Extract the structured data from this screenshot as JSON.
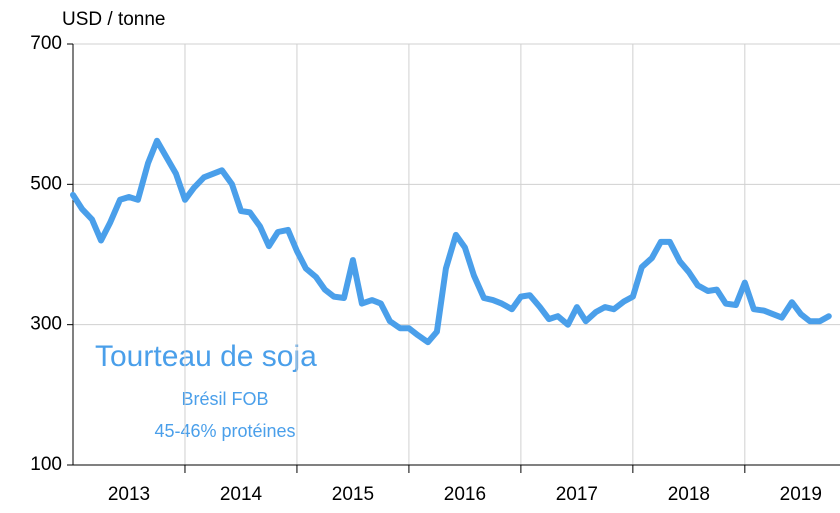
{
  "chart_data": {
    "type": "line",
    "y_label": "USD / tonne",
    "annotations": [
      "Tourteau de soja",
      "Brésil FOB",
      "45-46% protéines"
    ],
    "xlim": [
      2013,
      2019.85
    ],
    "xticks": [
      {
        "value": 2013.5,
        "label": "2013"
      },
      {
        "value": 2014.5,
        "label": "2014"
      },
      {
        "value": 2015.5,
        "label": "2015"
      },
      {
        "value": 2016.5,
        "label": "2016"
      },
      {
        "value": 2017.5,
        "label": "2017"
      },
      {
        "value": 2018.5,
        "label": "2018"
      },
      {
        "value": 2019.5,
        "label": "2019"
      }
    ],
    "x_grid": [
      2014,
      2015,
      2016,
      2017,
      2018,
      2019
    ],
    "ylim": [
      100,
      700
    ],
    "yticks": [
      100,
      300,
      500,
      700
    ],
    "grid": true,
    "x": [
      2013,
      2013.08,
      2013.17,
      2013.25,
      2013.33,
      2013.42,
      2013.5,
      2013.58,
      2013.67,
      2013.75,
      2013.83,
      2013.92,
      2014,
      2014.08,
      2014.17,
      2014.25,
      2014.33,
      2014.42,
      2014.5,
      2014.58,
      2014.67,
      2014.75,
      2014.83,
      2014.92,
      2015,
      2015.08,
      2015.17,
      2015.25,
      2015.33,
      2015.42,
      2015.5,
      2015.58,
      2015.67,
      2015.75,
      2015.83,
      2015.92,
      2016,
      2016.08,
      2016.17,
      2016.25,
      2016.33,
      2016.42,
      2016.5,
      2016.58,
      2016.67,
      2016.75,
      2016.83,
      2016.92,
      2017,
      2017.08,
      2017.17,
      2017.25,
      2017.33,
      2017.42,
      2017.5,
      2017.58,
      2017.67,
      2017.75,
      2017.83,
      2017.92,
      2018,
      2018.08,
      2018.17,
      2018.25,
      2018.33,
      2018.42,
      2018.5,
      2018.58,
      2018.67,
      2018.75,
      2018.83,
      2018.92,
      2019,
      2019.08,
      2019.17,
      2019.25,
      2019.33,
      2019.42,
      2019.5,
      2019.58,
      2019.67,
      2019.75
    ],
    "series": [
      {
        "name": "Tourteau de soja",
        "color": "#4a9fea",
        "values": [
          485,
          465,
          450,
          420,
          445,
          478,
          482,
          478,
          530,
          562,
          540,
          515,
          478,
          495,
          510,
          515,
          520,
          500,
          462,
          460,
          440,
          412,
          432,
          435,
          405,
          380,
          368,
          350,
          340,
          338,
          392,
          330,
          335,
          330,
          305,
          295,
          295,
          285,
          275,
          290,
          380,
          428,
          410,
          370,
          338,
          335,
          330,
          322,
          340,
          342,
          325,
          308,
          312,
          300,
          325,
          305,
          318,
          325,
          322,
          333,
          340,
          382,
          395,
          418,
          418,
          390,
          375,
          356,
          348,
          350,
          330,
          328,
          360,
          322,
          320,
          315,
          310,
          332,
          315,
          305,
          305,
          312
        ]
      }
    ]
  }
}
